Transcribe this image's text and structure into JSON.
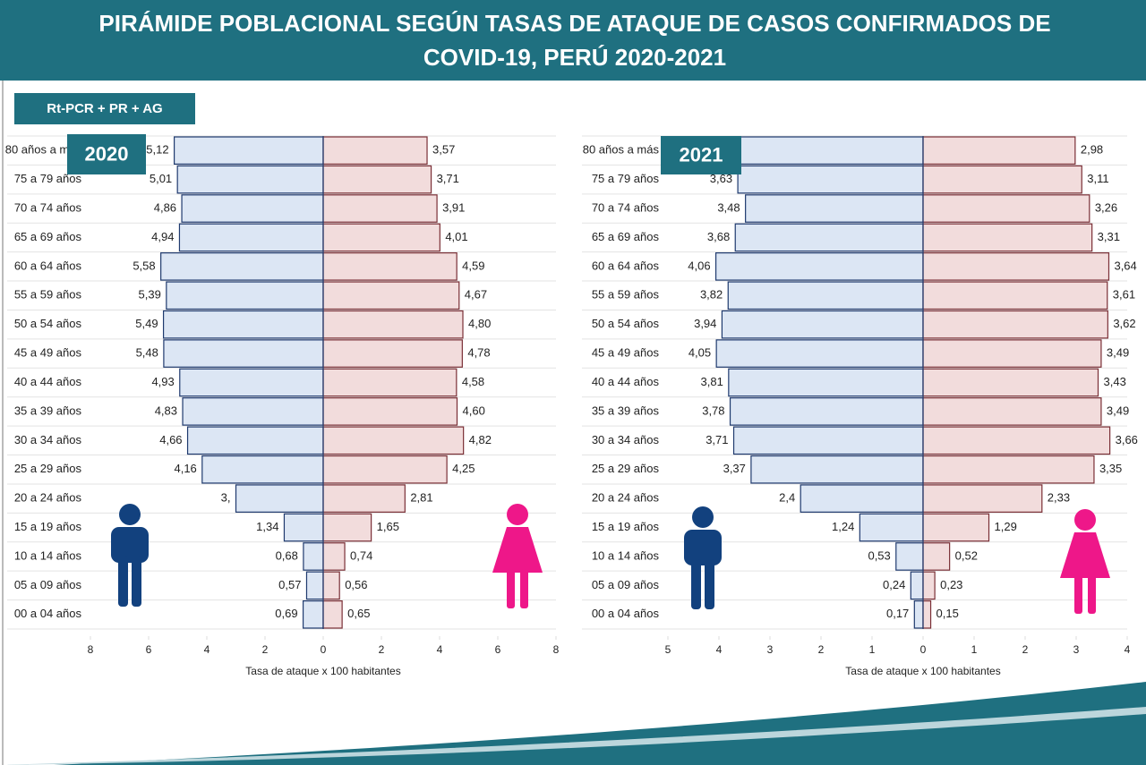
{
  "header": {
    "title_lines": [
      "PIRÁMIDE POBLACIONAL SEGÚN TASAS DE ATAQUE DE CASOS CONFIRMADOS DE",
      "COVID-19, PERÚ 2020-2021"
    ],
    "badge": "Rt-PCR + PR + AG"
  },
  "chart_data": [
    {
      "type": "pyramid",
      "title": "2020",
      "x_label": "Tasa de ataque x 100 habitantes",
      "categories": [
        "80 años a más",
        "75 a 79 años",
        "70 a 74 años",
        "65 a 69 años",
        "60 a 64 años",
        "55 a 59 años",
        "50 a 54 años",
        "45 a 49 años",
        "40 a 44 años",
        "35 a 39 años",
        "30 a 34 años",
        "25 a 29 años",
        "20 a 24 años",
        "15 a 19 años",
        "10 a 14 años",
        "05 a 09 años",
        "00 a 04 años"
      ],
      "series": [
        {
          "color": "#dce6f4",
          "stroke": "#1f3a6e",
          "values": [
            5.12,
            5.01,
            4.86,
            4.94,
            5.58,
            5.39,
            5.49,
            5.48,
            4.93,
            4.83,
            4.66,
            4.16,
            3,
            1.34,
            0.68,
            0.57,
            0.69
          ],
          "value_labels": [
            "5,12",
            "5,01",
            "4,86",
            "4,94",
            "5,58",
            "5,39",
            "5,49",
            "5,48",
            "4,93",
            "4,83",
            "4,66",
            "4,16",
            "3,",
            "1,34",
            "0,68",
            "0,57",
            "0,69"
          ]
        },
        {
          "color": "#f2dcdc",
          "stroke": "#7a2f36",
          "values": [
            3.57,
            3.71,
            3.91,
            4.01,
            4.59,
            4.67,
            4.8,
            4.78,
            4.58,
            4.6,
            4.82,
            4.25,
            2.81,
            1.65,
            0.74,
            0.56,
            0.65
          ],
          "value_labels": [
            "3,57",
            "3,71",
            "3,91",
            "4,01",
            "4,59",
            "4,67",
            "4,80",
            "4,78",
            "4,58",
            "4,60",
            "4,82",
            "4,25",
            "2,81",
            "1,65",
            "0,74",
            "0,56",
            "0,65"
          ]
        }
      ],
      "xlim": [
        -8,
        8
      ],
      "xticks": [
        {
          "value": -8,
          "label": "8"
        },
        {
          "value": -6,
          "label": "6"
        },
        {
          "value": -4,
          "label": "4"
        },
        {
          "value": -2,
          "label": "2"
        },
        0,
        2,
        4,
        6,
        8
      ]
    },
    {
      "type": "pyramid",
      "title": "2021",
      "x_label": "Tasa de ataque x 100 habitantes",
      "categories": [
        "80 años a más",
        "75 a 79 años",
        "70 a 74 años",
        "65 a 69 años",
        "60 a 64 años",
        "55 a 59 años",
        "50 a 54 años",
        "45 a 49 años",
        "40 a 44 años",
        "35 a 39 años",
        "30 a 34 años",
        "25 a 29 años",
        "20 a 24 años",
        "15 a 19 años",
        "10 a 14 años",
        "05 a 09 años",
        "00 a 04 años"
      ],
      "series": [
        {
          "color": "#dce6f4",
          "stroke": "#1f3a6e",
          "values": [
            3.6,
            3.63,
            3.48,
            3.68,
            4.06,
            3.82,
            3.94,
            4.05,
            3.81,
            3.78,
            3.71,
            3.37,
            2.4,
            1.24,
            0.53,
            0.24,
            0.17
          ],
          "value_labels": [
            null,
            "3,63",
            "3,48",
            "3,68",
            "4,06",
            "3,82",
            "3,94",
            "4,05",
            "3,81",
            "3,78",
            "3,71",
            "3,37",
            "2,4",
            "1,24",
            "0,53",
            "0,24",
            "0,17"
          ]
        },
        {
          "color": "#f2dcdc",
          "stroke": "#7a2f36",
          "values": [
            2.98,
            3.11,
            3.26,
            3.31,
            3.64,
            3.61,
            3.62,
            3.49,
            3.43,
            3.49,
            3.66,
            3.35,
            2.33,
            1.29,
            0.52,
            0.23,
            0.15
          ],
          "value_labels": [
            "2,98",
            "3,11",
            "3,26",
            "3,31",
            "3,64",
            "3,61",
            "3,62",
            "3,49",
            "3,43",
            "3,49",
            "3,66",
            "3,35",
            "2,33",
            "1,29",
            "0,52",
            "0,23",
            "0,15"
          ]
        }
      ],
      "xlim": [
        -5,
        4
      ],
      "xticks": [
        {
          "value": -5,
          "label": "5"
        },
        {
          "value": -4,
          "label": "4"
        },
        {
          "value": -3,
          "label": "3"
        },
        {
          "value": -2,
          "label": "2"
        },
        {
          "value": -1,
          "label": "1"
        },
        0,
        1,
        2,
        3,
        4
      ]
    }
  ]
}
